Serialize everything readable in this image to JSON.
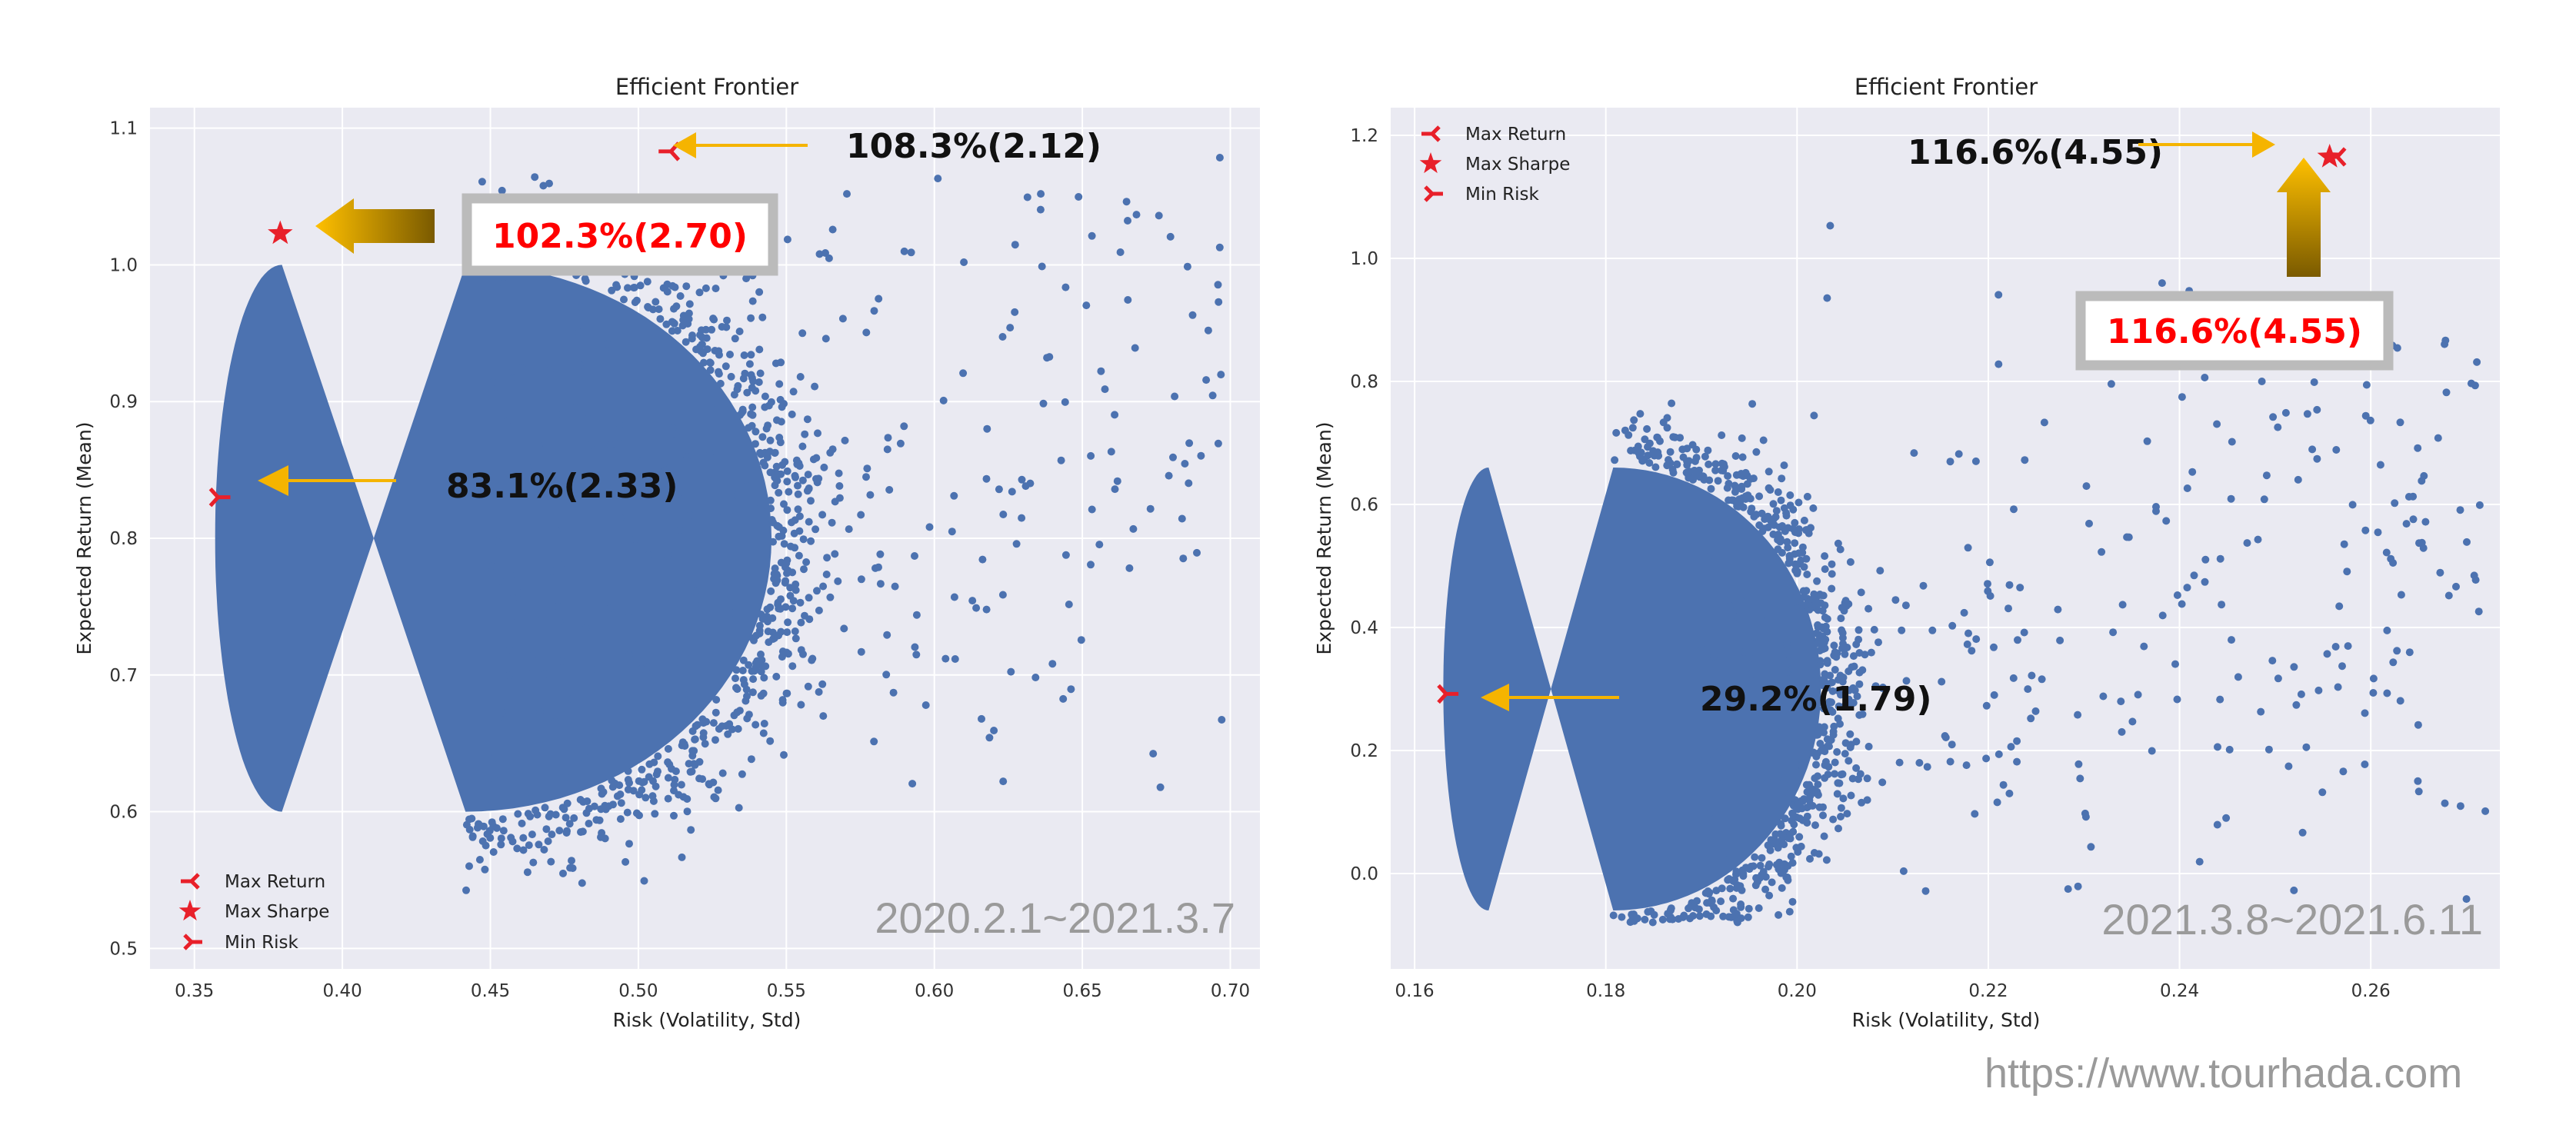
{
  "watermark": "https://www.tourhada.com",
  "chart_data": [
    {
      "type": "scatter",
      "title": "Efficient Frontier",
      "xlabel": "Risk (Volatility, Std)",
      "ylabel": "Expected Return (Mean)",
      "xlim": [
        0.335,
        0.71
      ],
      "ylim": [
        0.485,
        1.115
      ],
      "xticks": [
        "0.35",
        "0.40",
        "0.45",
        "0.50",
        "0.55",
        "0.60",
        "0.65",
        "0.70"
      ],
      "xtick_values": [
        0.35,
        0.4,
        0.45,
        0.5,
        0.55,
        0.6,
        0.65,
        0.7
      ],
      "yticks": [
        "0.5",
        "0.6",
        "0.7",
        "0.8",
        "0.9",
        "1.0",
        "1.1"
      ],
      "ytick_values": [
        0.5,
        0.6,
        0.7,
        0.8,
        0.9,
        1.0,
        1.1
      ],
      "grid": true,
      "legend_position": "lower-left",
      "legend": [
        {
          "label": "Max Return",
          "marker": "tri-left"
        },
        {
          "label": "Max Sharpe",
          "marker": "star"
        },
        {
          "label": "Min Risk",
          "marker": "tri-right"
        }
      ],
      "cloud": {
        "xmin": 0.357,
        "xmax": 0.55,
        "center_y": 0.8,
        "min_x_at_center": 0.357,
        "tail_x": [
          0.45,
          0.7
        ],
        "tail_y": [
          0.52,
          1.08
        ],
        "count": 900
      },
      "special_points": [
        {
          "name": "Max Return",
          "x": 0.511,
          "y": 1.083
        },
        {
          "name": "Max Sharpe",
          "x": 0.379,
          "y": 1.023
        },
        {
          "name": "Min Risk",
          "x": 0.358,
          "y": 0.83
        }
      ],
      "annotations": {
        "max_return": "108.3%(2.12)",
        "max_sharpe": "102.3%(2.70)",
        "min_risk": "83.1%(2.33)"
      },
      "period_label": "2020.2.1~2021.3.7",
      "colors": {
        "points": "#4c72b0",
        "marker": "#e8202a",
        "arrow": "#f5b400",
        "bg": "#eaeaf2",
        "highlight": "#ff0000"
      }
    },
    {
      "type": "scatter",
      "title": "Efficient Frontier",
      "xlabel": "Risk (Volatility, Std)",
      "ylabel": "Expected Return (Mean)",
      "xlim": [
        0.1575,
        0.2735
      ],
      "ylim": [
        -0.155,
        1.245
      ],
      "xticks": [
        "0.16",
        "0.18",
        "0.20",
        "0.22",
        "0.24",
        "0.26"
      ],
      "xtick_values": [
        0.16,
        0.18,
        0.2,
        0.22,
        0.24,
        0.26
      ],
      "yticks": [
        "0.0",
        "0.2",
        "0.4",
        "0.6",
        "0.8",
        "1.0",
        "1.2"
      ],
      "ytick_values": [
        0.0,
        0.2,
        0.4,
        0.6,
        0.8,
        1.0,
        1.2
      ],
      "grid": true,
      "legend_position": "upper-left",
      "legend": [
        {
          "label": "Max Return",
          "marker": "tri-left"
        },
        {
          "label": "Max Sharpe",
          "marker": "star"
        },
        {
          "label": "Min Risk",
          "marker": "tri-right"
        }
      ],
      "cloud": {
        "xmin": 0.163,
        "xmax": 0.2,
        "center_y": 0.3,
        "min_x_at_center": 0.163,
        "tail_x": [
          0.19,
          0.272
        ],
        "tail_y": [
          -0.08,
          1.12
        ],
        "count": 900
      },
      "special_points": [
        {
          "name": "Max Return",
          "x": 0.2565,
          "y": 1.165
        },
        {
          "name": "Max Sharpe",
          "x": 0.2557,
          "y": 1.165
        },
        {
          "name": "Min Risk",
          "x": 0.1633,
          "y": 0.292
        }
      ],
      "annotations": {
        "max_return": "116.6%(4.55)",
        "max_sharpe": "116.6%(4.55)",
        "min_risk": "29.2%(1.79)"
      },
      "period_label": "2021.3.8~2021.6.11",
      "colors": {
        "points": "#4c72b0",
        "marker": "#e8202a",
        "arrow": "#f5b400",
        "bg": "#eaeaf2",
        "highlight": "#ff0000"
      }
    }
  ]
}
